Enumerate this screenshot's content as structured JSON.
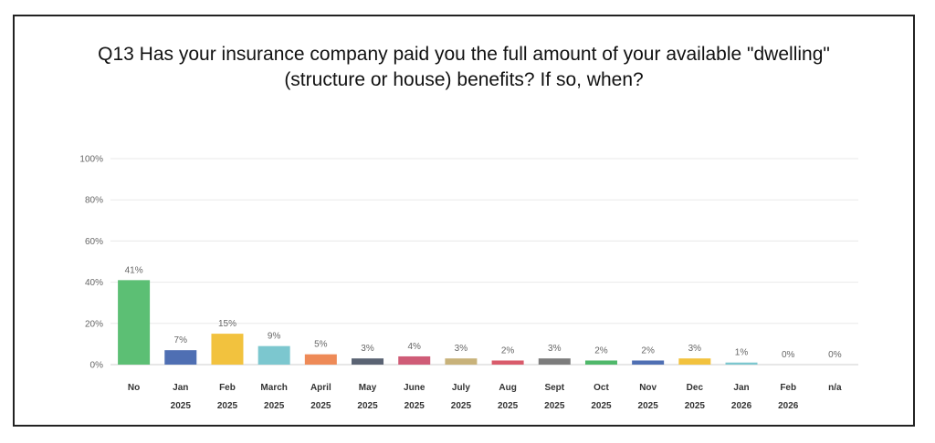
{
  "chart_data": {
    "type": "bar",
    "title_line1": "Q13 Has your insurance company paid you the full amount of your available \"dwelling\"",
    "title_line2": "(structure or house) benefits? If so, when?",
    "categories": [
      [
        "No",
        ""
      ],
      [
        "Jan",
        "2025"
      ],
      [
        "Feb",
        "2025"
      ],
      [
        "March",
        "2025"
      ],
      [
        "April",
        "2025"
      ],
      [
        "May",
        "2025"
      ],
      [
        "June",
        "2025"
      ],
      [
        "July",
        "2025"
      ],
      [
        "Aug",
        "2025"
      ],
      [
        "Sept",
        "2025"
      ],
      [
        "Oct",
        "2025"
      ],
      [
        "Nov",
        "2025"
      ],
      [
        "Dec",
        "2025"
      ],
      [
        "Jan",
        "2026"
      ],
      [
        "Feb",
        "2026"
      ],
      [
        "n/a",
        ""
      ]
    ],
    "values": [
      41,
      7,
      15,
      9,
      5,
      3,
      4,
      3,
      2,
      3,
      2,
      2,
      3,
      1,
      0,
      0
    ],
    "data_labels": [
      "41%",
      "7%",
      "15%",
      "9%",
      "5%",
      "3%",
      "4%",
      "3%",
      "2%",
      "3%",
      "2%",
      "2%",
      "3%",
      "1%",
      "0%",
      "0%"
    ],
    "colors": [
      "#5cbf74",
      "#4f6fb3",
      "#f2c23e",
      "#7cc7cf",
      "#ee8a57",
      "#5a6373",
      "#cf5c77",
      "#c8b27a",
      "#d95b6b",
      "#7c7c7c",
      "#4fb86a",
      "#4f6fb3",
      "#f2c23e",
      "#7cc7cf",
      "#ee8a57",
      "#5a6373"
    ],
    "yticks": [
      "0%",
      "20%",
      "40%",
      "60%",
      "80%",
      "100%"
    ],
    "ylim": [
      0,
      100
    ],
    "grid": true
  }
}
